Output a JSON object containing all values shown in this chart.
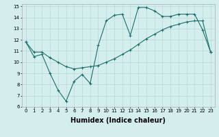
{
  "title": "",
  "xlabel": "Humidex (Indice chaleur)",
  "background_color": "#d4eeed",
  "grid_color": "#b8d8d8",
  "line_color": "#1a6e6a",
  "xlim": [
    -0.5,
    23.5
  ],
  "ylim": [
    6,
    15.2
  ],
  "yticks": [
    6,
    7,
    8,
    9,
    10,
    11,
    12,
    13,
    14,
    15
  ],
  "xticks": [
    0,
    1,
    2,
    3,
    4,
    5,
    6,
    7,
    8,
    9,
    10,
    11,
    12,
    13,
    14,
    15,
    16,
    17,
    18,
    19,
    20,
    21,
    22,
    23
  ],
  "line1_x": [
    0,
    1,
    2,
    3,
    4,
    5,
    6,
    7,
    8,
    9,
    10,
    11,
    12,
    13,
    14,
    15,
    16,
    17,
    18,
    19,
    20,
    21,
    22,
    23
  ],
  "line1_y": [
    11.8,
    10.5,
    10.7,
    9.0,
    7.5,
    6.5,
    8.3,
    8.9,
    8.1,
    11.5,
    13.7,
    14.2,
    14.3,
    12.4,
    14.9,
    14.9,
    14.6,
    14.1,
    14.1,
    14.3,
    14.3,
    14.3,
    12.9,
    10.9
  ],
  "line2_x": [
    0,
    1,
    2,
    3,
    4,
    5,
    6,
    7,
    8,
    9,
    10,
    11,
    12,
    13,
    14,
    15,
    16,
    17,
    18,
    19,
    20,
    21,
    22,
    23
  ],
  "line2_y": [
    11.8,
    10.9,
    10.9,
    10.4,
    10.0,
    9.6,
    9.4,
    9.5,
    9.6,
    9.7,
    10.0,
    10.3,
    10.7,
    11.1,
    11.6,
    12.1,
    12.5,
    12.9,
    13.2,
    13.4,
    13.6,
    13.7,
    13.7,
    10.9
  ],
  "marker_style": "+",
  "xlabel_fontsize": 7,
  "tick_fontsize": 5,
  "linewidth": 0.8,
  "markersize": 3
}
